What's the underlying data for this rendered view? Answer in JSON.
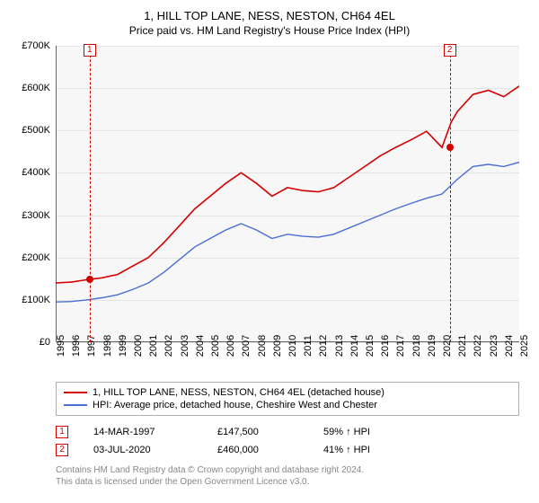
{
  "title": "1, HILL TOP LANE, NESS, NESTON, CH64 4EL",
  "subtitle": "Price paid vs. HM Land Registry's House Price Index (HPI)",
  "chart": {
    "type": "line",
    "background_color": "#ffffff",
    "plot_background_color": "#f7f7f7",
    "grid_color": "#e4e4e4",
    "axis_color": "#666666",
    "font_size_ticks": 11,
    "x": {
      "min": 1995,
      "max": 2025,
      "ticks": [
        1995,
        1996,
        1997,
        1998,
        1999,
        2000,
        2001,
        2002,
        2003,
        2004,
        2005,
        2006,
        2007,
        2008,
        2009,
        2010,
        2011,
        2012,
        2013,
        2014,
        2015,
        2016,
        2017,
        2018,
        2019,
        2020,
        2021,
        2022,
        2023,
        2024,
        2025
      ]
    },
    "y": {
      "min": 0,
      "max": 700000,
      "ticks": [
        0,
        100000,
        200000,
        300000,
        400000,
        500000,
        600000,
        700000
      ],
      "tick_labels": [
        "£0",
        "£100K",
        "£200K",
        "£300K",
        "£400K",
        "£500K",
        "£600K",
        "£700K"
      ]
    },
    "series": [
      {
        "name": "price_paid",
        "label": "1, HILL TOP LANE, NESS, NESTON, CH64 4EL (detached house)",
        "color": "#d40000",
        "line_width": 1.6,
        "points": [
          [
            1995,
            140000
          ],
          [
            1996,
            142000
          ],
          [
            1997,
            147500
          ],
          [
            1998,
            152000
          ],
          [
            1999,
            160000
          ],
          [
            2000,
            180000
          ],
          [
            2001,
            200000
          ],
          [
            2002,
            235000
          ],
          [
            2003,
            275000
          ],
          [
            2004,
            315000
          ],
          [
            2005,
            345000
          ],
          [
            2006,
            375000
          ],
          [
            2007,
            400000
          ],
          [
            2008,
            375000
          ],
          [
            2009,
            345000
          ],
          [
            2010,
            365000
          ],
          [
            2011,
            358000
          ],
          [
            2012,
            355000
          ],
          [
            2013,
            365000
          ],
          [
            2014,
            390000
          ],
          [
            2015,
            415000
          ],
          [
            2016,
            440000
          ],
          [
            2017,
            460000
          ],
          [
            2018,
            478000
          ],
          [
            2019,
            498000
          ],
          [
            2020,
            460000
          ],
          [
            2020.6,
            520000
          ],
          [
            2021,
            545000
          ],
          [
            2022,
            585000
          ],
          [
            2023,
            595000
          ],
          [
            2024,
            580000
          ],
          [
            2025,
            605000
          ]
        ]
      },
      {
        "name": "hpi",
        "label": "HPI: Average price, detached house, Cheshire West and Chester",
        "color": "#4a6fd4",
        "line_width": 1.4,
        "points": [
          [
            1995,
            95000
          ],
          [
            1996,
            96000
          ],
          [
            1997,
            100000
          ],
          [
            1998,
            105000
          ],
          [
            1999,
            112000
          ],
          [
            2000,
            125000
          ],
          [
            2001,
            140000
          ],
          [
            2002,
            165000
          ],
          [
            2003,
            195000
          ],
          [
            2004,
            225000
          ],
          [
            2005,
            245000
          ],
          [
            2006,
            265000
          ],
          [
            2007,
            280000
          ],
          [
            2008,
            265000
          ],
          [
            2009,
            245000
          ],
          [
            2010,
            255000
          ],
          [
            2011,
            250000
          ],
          [
            2012,
            248000
          ],
          [
            2013,
            255000
          ],
          [
            2014,
            270000
          ],
          [
            2015,
            285000
          ],
          [
            2016,
            300000
          ],
          [
            2017,
            315000
          ],
          [
            2018,
            328000
          ],
          [
            2019,
            340000
          ],
          [
            2020,
            350000
          ],
          [
            2021,
            385000
          ],
          [
            2022,
            415000
          ],
          [
            2023,
            420000
          ],
          [
            2024,
            415000
          ],
          [
            2025,
            425000
          ]
        ]
      }
    ],
    "annotations": [
      {
        "id": "1",
        "x": 1997.2,
        "color": "#d40000",
        "line_dash": "3,3",
        "box_top": true
      },
      {
        "id": "2",
        "x": 2020.5,
        "color": "#d40000",
        "line_dash": "3,3",
        "box_top": true
      }
    ],
    "markers": [
      {
        "x": 1997.2,
        "y": 147500,
        "color": "#d40000",
        "size": 8
      },
      {
        "x": 2020.5,
        "y": 460000,
        "color": "#d40000",
        "size": 8
      }
    ]
  },
  "legend": {
    "border_color": "#b0b0b0",
    "font_size": 11,
    "items": [
      {
        "color": "#d40000",
        "label": "1, HILL TOP LANE, NESS, NESTON, CH64 4EL (detached house)"
      },
      {
        "color": "#4a6fd4",
        "label": "HPI: Average price, detached house, Cheshire West and Chester"
      }
    ]
  },
  "events": [
    {
      "id": "1",
      "date": "14-MAR-1997",
      "price": "£147,500",
      "delta": "59% ↑ HPI",
      "color": "#d40000"
    },
    {
      "id": "2",
      "date": "03-JUL-2020",
      "price": "£460,000",
      "delta": "41% ↑ HPI",
      "color": "#d40000"
    }
  ],
  "footer": [
    "Contains HM Land Registry data © Crown copyright and database right 2024.",
    "This data is licensed under the Open Government Licence v3.0."
  ]
}
